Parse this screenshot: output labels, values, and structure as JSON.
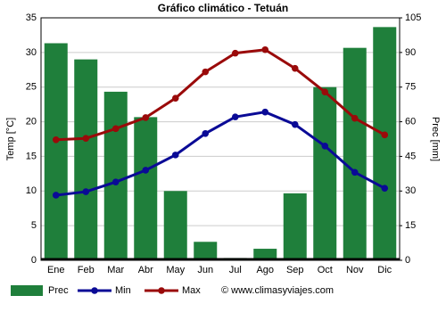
{
  "chart_data": {
    "type": "combo",
    "title": "Gráfico climático - Tetuán",
    "categories": [
      "Ene",
      "Feb",
      "Mar",
      "Abr",
      "May",
      "Jun",
      "Jul",
      "Ago",
      "Sep",
      "Oct",
      "Nov",
      "Dic"
    ],
    "series": [
      {
        "name": "Prec",
        "type": "bar",
        "axis": "y2",
        "color": "#1f7f3b",
        "values": [
          94,
          87,
          73,
          62,
          30,
          8,
          1,
          5,
          29,
          75,
          92,
          101
        ]
      },
      {
        "name": "Min",
        "type": "line",
        "color": "#0a0a96",
        "values": [
          9.4,
          9.9,
          11.3,
          13.0,
          15.2,
          18.3,
          20.7,
          21.4,
          19.6,
          16.5,
          12.7,
          10.4
        ]
      },
      {
        "name": "Max",
        "type": "line",
        "color": "#9a0a0a",
        "values": [
          17.4,
          17.6,
          19.0,
          20.6,
          23.4,
          27.2,
          29.9,
          30.4,
          27.7,
          24.3,
          20.5,
          18.1
        ]
      }
    ],
    "ylabel": "Temp [°C]",
    "y2label": "Prec [mm]",
    "ylim": [
      0,
      35
    ],
    "yticks": [
      0,
      5,
      10,
      15,
      20,
      25,
      30,
      35
    ],
    "y2lim": [
      0,
      105
    ],
    "y2ticks": [
      0,
      15,
      30,
      45,
      60,
      75,
      90,
      105
    ],
    "grid": true,
    "legend": "bottom",
    "source": "© www.climasyviajes.com"
  }
}
